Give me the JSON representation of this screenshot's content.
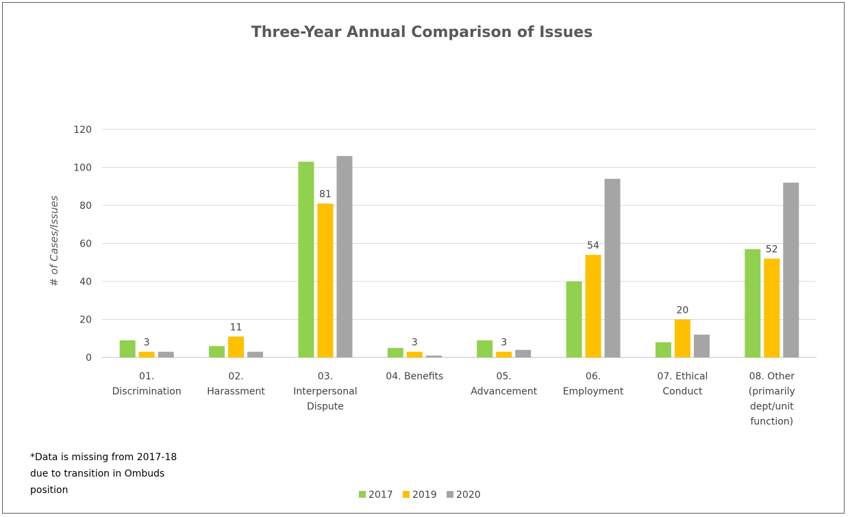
{
  "chart_data": {
    "type": "bar",
    "title": "Three-Year Annual Comparison of Issues",
    "ylabel": "# of Cases/Issues",
    "xlabel": "",
    "ylim": [
      0,
      120
    ],
    "yticks": [
      0,
      20,
      40,
      60,
      80,
      100,
      120
    ],
    "grid": true,
    "legend_position": "bottom",
    "categories": [
      [
        "01.",
        "Discrimination"
      ],
      [
        "02.",
        "Harassment"
      ],
      [
        "03.",
        "Interpersonal",
        "Dispute"
      ],
      [
        "04. Benefits"
      ],
      [
        "05.",
        "Advancement"
      ],
      [
        "06.",
        "Employment"
      ],
      [
        "07. Ethical",
        "Conduct"
      ],
      [
        "08. Other",
        "(primarily",
        "dept/unit",
        "function)"
      ]
    ],
    "series": [
      {
        "name": "2017",
        "color": "#92d050",
        "values": [
          9,
          6,
          103,
          5,
          9,
          40,
          8,
          57
        ]
      },
      {
        "name": "2019",
        "color": "#ffc000",
        "values": [
          3,
          11,
          81,
          3,
          3,
          54,
          20,
          52
        ],
        "data_labels": true
      },
      {
        "name": "2020",
        "color": "#a5a5a5",
        "values": [
          3,
          3,
          106,
          1,
          4,
          94,
          12,
          92
        ]
      }
    ],
    "footnote": [
      "*Data is missing from 2017-18",
      "due to transition in Ombuds",
      "position"
    ]
  }
}
